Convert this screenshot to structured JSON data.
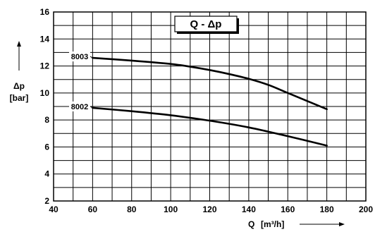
{
  "chart_data": {
    "type": "line",
    "title": "Q - Δp",
    "xlabel": "Q",
    "xunit": "[m³/h]",
    "ylabel": "Δp",
    "yunit": "[bar]",
    "xlim": [
      40,
      200
    ],
    "ylim": [
      2,
      16
    ],
    "xticks": [
      40,
      60,
      80,
      100,
      120,
      140,
      160,
      180,
      200
    ],
    "yticks": [
      2,
      4,
      6,
      8,
      10,
      12,
      14,
      16
    ],
    "x_minor_step": 10,
    "y_minor_step": 1,
    "grid": true,
    "series": [
      {
        "name": "8003",
        "x": [
          60,
          80,
          100,
          110,
          120,
          130,
          140,
          150,
          160,
          170,
          180
        ],
        "y": [
          12.6,
          12.4,
          12.15,
          11.95,
          11.7,
          11.4,
          11.05,
          10.6,
          10.0,
          9.4,
          8.8
        ]
      },
      {
        "name": "8002",
        "x": [
          60,
          80,
          100,
          120,
          140,
          160,
          180
        ],
        "y": [
          8.9,
          8.65,
          8.35,
          7.95,
          7.45,
          6.8,
          6.1
        ]
      }
    ]
  }
}
